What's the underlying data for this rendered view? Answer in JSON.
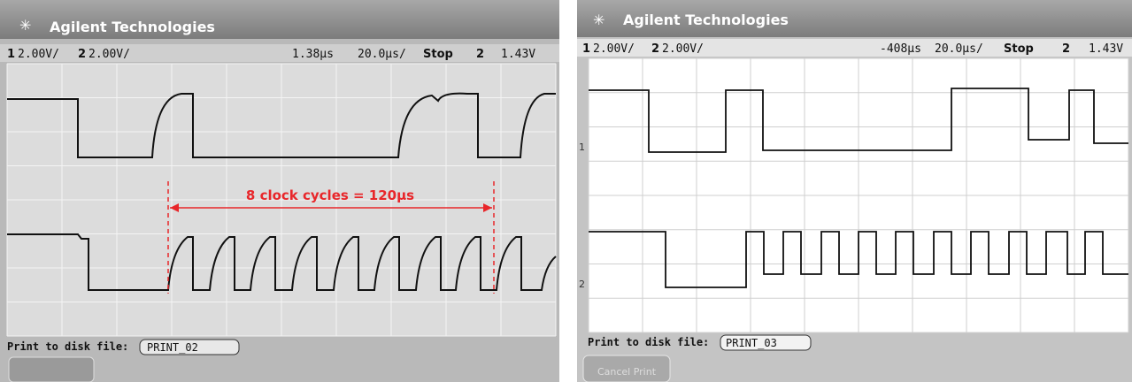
{
  "panels": [
    {
      "brand": "Agilent Technologies",
      "status": {
        "ch1": "1",
        "ch1_scale": "2.00V/",
        "ch2": "2",
        "ch2_scale": "2.00V/",
        "delay": "1.38µs",
        "timebase": "20.0µs/",
        "run_state": "Stop",
        "trigger_channel": "2",
        "trigger_level": "1.43V"
      },
      "annotation": "8 clock cycles = 120µs",
      "file_label": "Print to disk file:",
      "file_name": "PRINT_02"
    },
    {
      "brand": "Agilent Technologies",
      "status": {
        "ch1": "1",
        "ch1_scale": "2.00V/",
        "ch2": "2",
        "ch2_scale": "2.00V/",
        "delay": "-408µs",
        "timebase": "20.0µs/",
        "run_state": "Stop",
        "trigger_channel": "2",
        "trigger_level": "1.43V"
      },
      "markers": [
        "1",
        "2"
      ],
      "file_label": "Print to disk file:",
      "file_name": "PRINT_03",
      "button": "Cancel Print"
    }
  ]
}
